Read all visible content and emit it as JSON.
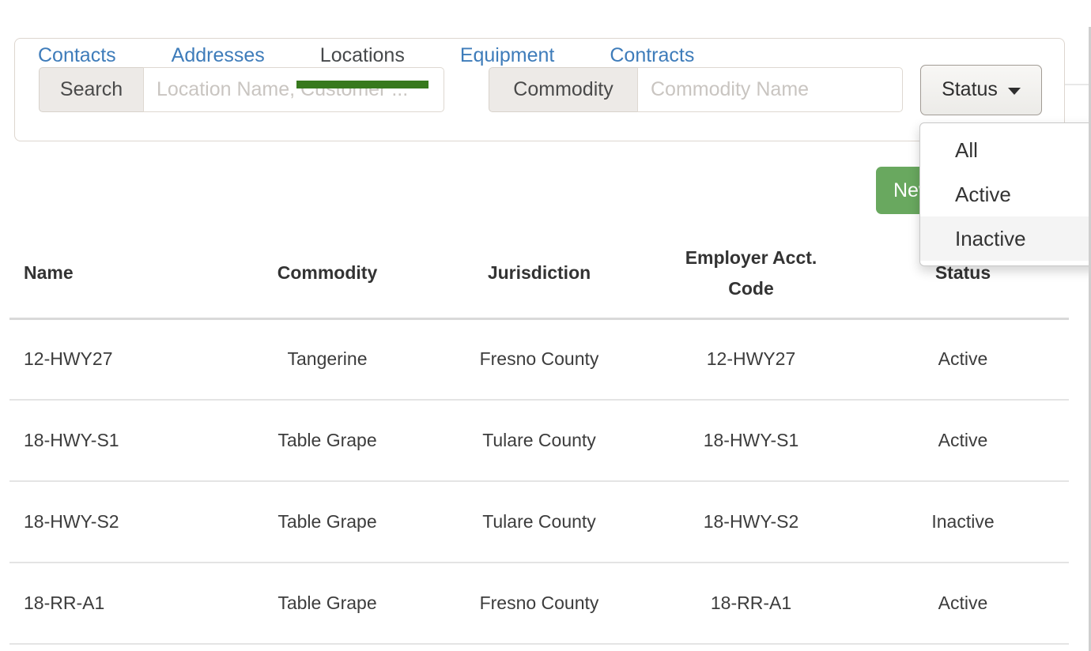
{
  "filters": {
    "search": {
      "label": "Search",
      "placeholder": "Location Name, Customer ..."
    },
    "commodity": {
      "label": "Commodity",
      "placeholder": "Commodity Name"
    },
    "status": {
      "label": "Status",
      "options": [
        "All",
        "Active",
        "Inactive"
      ],
      "highlighted": "Inactive"
    }
  },
  "tabs": {
    "items": [
      "Contacts",
      "Addresses",
      "Locations",
      "Equipment",
      "Contracts"
    ],
    "active": "Locations"
  },
  "actions": {
    "new_label": "New"
  },
  "table": {
    "columns": [
      "Name",
      "Commodity",
      "Jurisdiction",
      "Employer Acct. Code",
      "Status"
    ],
    "rows": [
      [
        "12-HWY27",
        "Tangerine",
        "Fresno County",
        "12-HWY27",
        "Active"
      ],
      [
        "18-HWY-S1",
        "Table Grape",
        "Tulare County",
        "18-HWY-S1",
        "Active"
      ],
      [
        "18-HWY-S2",
        "Table Grape",
        "Tulare County",
        "18-HWY-S2",
        "Inactive"
      ],
      [
        "18-RR-A1",
        "Table Grape",
        "Fresno County",
        "18-RR-A1",
        "Active"
      ]
    ]
  },
  "colors": {
    "tab_link": "#3e7cba",
    "tab_active_underline": "#37791d",
    "new_button_bg": "#69a85f",
    "dropdown_highlight_bg": "#f4f4f4",
    "addon_bg": "#edeae7"
  }
}
